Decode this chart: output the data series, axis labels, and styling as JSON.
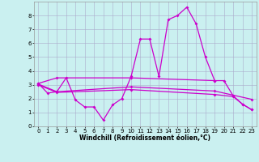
{
  "xlabel": "Windchill (Refroidissement éolien,°C)",
  "bg_color": "#caf0f0",
  "grid_color": "#aaaacc",
  "line_color": "#cc00cc",
  "markersize": 2.0,
  "linewidth": 0.9,
  "xlim": [
    -0.5,
    23.5
  ],
  "ylim": [
    0,
    9
  ],
  "xticks": [
    0,
    1,
    2,
    3,
    4,
    5,
    6,
    7,
    8,
    9,
    10,
    11,
    12,
    13,
    14,
    15,
    16,
    17,
    18,
    19,
    20,
    21,
    22,
    23
  ],
  "yticks": [
    0,
    1,
    2,
    3,
    4,
    5,
    6,
    7,
    8
  ],
  "tick_fontsize": 5.0,
  "xlabel_fontsize": 5.5,
  "line1_x": [
    0,
    1,
    2,
    3,
    4,
    5,
    6,
    7,
    8,
    9,
    10,
    11,
    12,
    13,
    14,
    15,
    16,
    17,
    18,
    19,
    20,
    21,
    22,
    23
  ],
  "line1_y": [
    3.1,
    2.4,
    2.5,
    3.5,
    1.9,
    1.4,
    1.4,
    0.45,
    1.55,
    2.0,
    3.6,
    6.3,
    6.3,
    3.6,
    7.7,
    8.0,
    8.6,
    7.4,
    5.0,
    3.3,
    3.3,
    2.2,
    1.6,
    1.2
  ],
  "line2_x": [
    0,
    2,
    10,
    19
  ],
  "line2_y": [
    3.1,
    3.5,
    3.5,
    3.3
  ],
  "line3_x": [
    0,
    2,
    10,
    19,
    23
  ],
  "line3_y": [
    3.05,
    2.5,
    2.85,
    2.55,
    1.95
  ],
  "line4_x": [
    0,
    2,
    10,
    19,
    21,
    22,
    23
  ],
  "line4_y": [
    3.0,
    2.45,
    2.65,
    2.3,
    2.15,
    1.6,
    1.2
  ]
}
